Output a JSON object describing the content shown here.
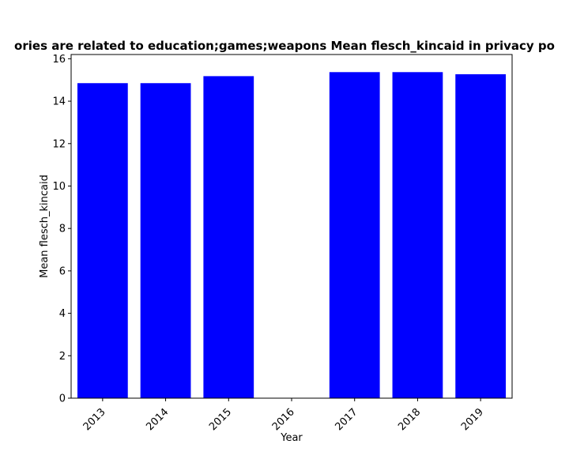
{
  "chart_data": {
    "type": "bar",
    "title": "ories are related to education;games;weapons Mean flesch_kincaid in privacy po",
    "xlabel": "Year",
    "ylabel": "Mean flesch_kincaid",
    "categories": [
      "2013",
      "2014",
      "2015",
      "2016",
      "2017",
      "2018",
      "2019"
    ],
    "values": [
      14.85,
      14.85,
      15.18,
      null,
      15.37,
      15.37,
      15.27
    ],
    "ylim": [
      0,
      16.2
    ],
    "yticks": [
      0,
      2,
      4,
      6,
      8,
      10,
      12,
      14,
      16
    ],
    "bar_color": "#0000ff",
    "grid": false,
    "legend": "none"
  }
}
